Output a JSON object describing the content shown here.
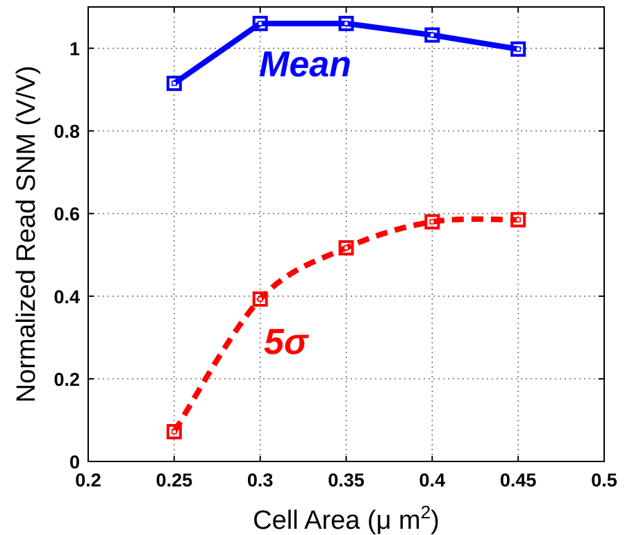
{
  "chart_data": {
    "type": "line",
    "xlabel": "Cell Area (μ m",
    "xlabel_superscript": "2",
    "xlabel_suffix": ")",
    "ylabel": "Normalized Read SNM (V/V)",
    "xlim": [
      0.2,
      0.5
    ],
    "ylim": [
      0,
      1.1
    ],
    "xticks": [
      "0.2",
      "0.25",
      "0.3",
      "0.35",
      "0.4",
      "0.45",
      "0.5"
    ],
    "yticks": [
      "0",
      "0.2",
      "0.4",
      "0.6",
      "0.8",
      "1"
    ],
    "grid": true,
    "x": [
      0.25,
      0.3,
      0.35,
      0.4,
      0.45
    ],
    "series": [
      {
        "name": "Mean",
        "values": [
          0.915,
          1.06,
          1.06,
          1.032,
          0.998
        ],
        "color": "#0000ff",
        "line_style": "solid",
        "marker": "square"
      },
      {
        "name": "5σ",
        "values": [
          0.072,
          0.393,
          0.517,
          0.58,
          0.585
        ],
        "color": "#ff0000",
        "line_style": "dashed",
        "marker": "square"
      }
    ]
  }
}
